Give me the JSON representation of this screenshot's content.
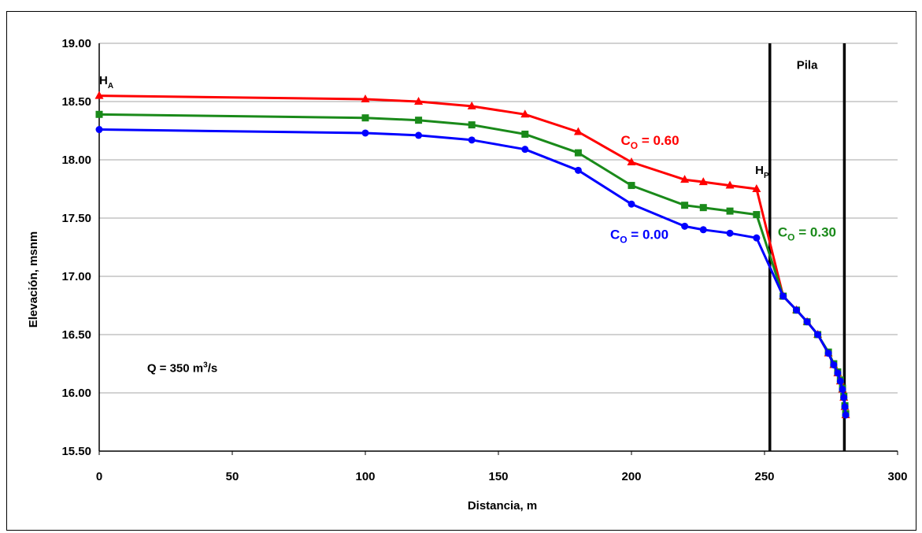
{
  "chart_data": {
    "type": "line",
    "xlabel": "Distancia, m",
    "ylabel": "Elevación, msnm",
    "xlim": [
      0,
      300
    ],
    "ylim": [
      15.5,
      19.0
    ],
    "xticks": [
      "0",
      "50",
      "100",
      "150",
      "200",
      "250",
      "300"
    ],
    "yticks": [
      "15.50",
      "16.00",
      "16.50",
      "17.00",
      "17.50",
      "18.00",
      "18.50",
      "19.00"
    ],
    "grid": "horizontal",
    "colors": {
      "red": "#ff0000",
      "green": "#1a8a1a",
      "blue": "#0000ff",
      "axis": "#000000",
      "grid": "#a6a6a6"
    },
    "series": [
      {
        "color": "red",
        "marker": "triangle",
        "x": [
          0,
          100,
          120,
          140,
          160,
          180,
          200,
          220,
          227,
          237,
          247,
          257,
          262,
          266,
          270,
          274,
          276,
          277.5,
          278.5,
          279.3,
          279.8,
          280.2,
          280.5
        ],
        "y": [
          18.55,
          18.52,
          18.5,
          18.46,
          18.39,
          18.24,
          17.98,
          17.83,
          17.81,
          17.78,
          17.75,
          16.83,
          16.71,
          16.61,
          16.5,
          16.34,
          16.24,
          16.17,
          16.1,
          16.03,
          15.96,
          15.88,
          15.81
        ]
      },
      {
        "color": "green",
        "marker": "square",
        "x": [
          0,
          100,
          120,
          140,
          160,
          180,
          200,
          220,
          227,
          237,
          247,
          257,
          262,
          266,
          270,
          274,
          276,
          277.5,
          278.5,
          279.3,
          279.8,
          280.2,
          280.5
        ],
        "y": [
          18.39,
          18.36,
          18.34,
          18.3,
          18.22,
          18.06,
          17.78,
          17.61,
          17.59,
          17.56,
          17.53,
          16.83,
          16.71,
          16.61,
          16.5,
          16.35,
          16.25,
          16.18,
          16.11,
          16.04,
          15.97,
          15.89,
          15.82
        ]
      },
      {
        "color": "blue",
        "marker": "circle",
        "x": [
          0,
          100,
          120,
          140,
          160,
          180,
          200,
          220,
          227,
          237,
          247,
          257,
          262,
          266,
          270,
          274,
          276,
          277.5,
          278.5,
          279.3,
          279.8,
          280.2,
          280.5
        ],
        "y": [
          18.26,
          18.23,
          18.21,
          18.17,
          18.09,
          17.91,
          17.62,
          17.43,
          17.4,
          17.37,
          17.33,
          16.83,
          16.71,
          16.61,
          16.5,
          16.34,
          16.24,
          16.17,
          16.1,
          16.03,
          15.96,
          15.88,
          15.81
        ]
      }
    ],
    "vlines": [
      252,
      280
    ],
    "annotations": [
      {
        "id": "ha",
        "main": "H",
        "sub": "A",
        "tail": "",
        "x": 0,
        "y": 18.65,
        "color": "axis",
        "size": 15
      },
      {
        "id": "hp",
        "main": "H",
        "sub": "P",
        "tail": "",
        "x": 246.5,
        "y": 17.88,
        "color": "axis",
        "size": 15
      },
      {
        "id": "co060",
        "main": "C",
        "sub": "O",
        "tail": " = 0.60",
        "x": 196,
        "y": 18.13,
        "color": "red",
        "size": 17
      },
      {
        "id": "co000",
        "main": "C",
        "sub": "O",
        "tail": " = 0.00",
        "x": 192,
        "y": 17.32,
        "color": "blue",
        "size": 17
      },
      {
        "id": "co030",
        "main": "C",
        "sub": "O",
        "tail": " = 0.30",
        "x": 255,
        "y": 17.34,
        "color": "green",
        "size": 17
      }
    ],
    "label_pila": "Pila",
    "label_pila_pos": {
      "x": 266,
      "y": 18.78
    },
    "label_q": {
      "prefix": "Q = 350 m",
      "sup": "3",
      "suffix": "/s",
      "x": 18,
      "y": 16.18
    }
  }
}
